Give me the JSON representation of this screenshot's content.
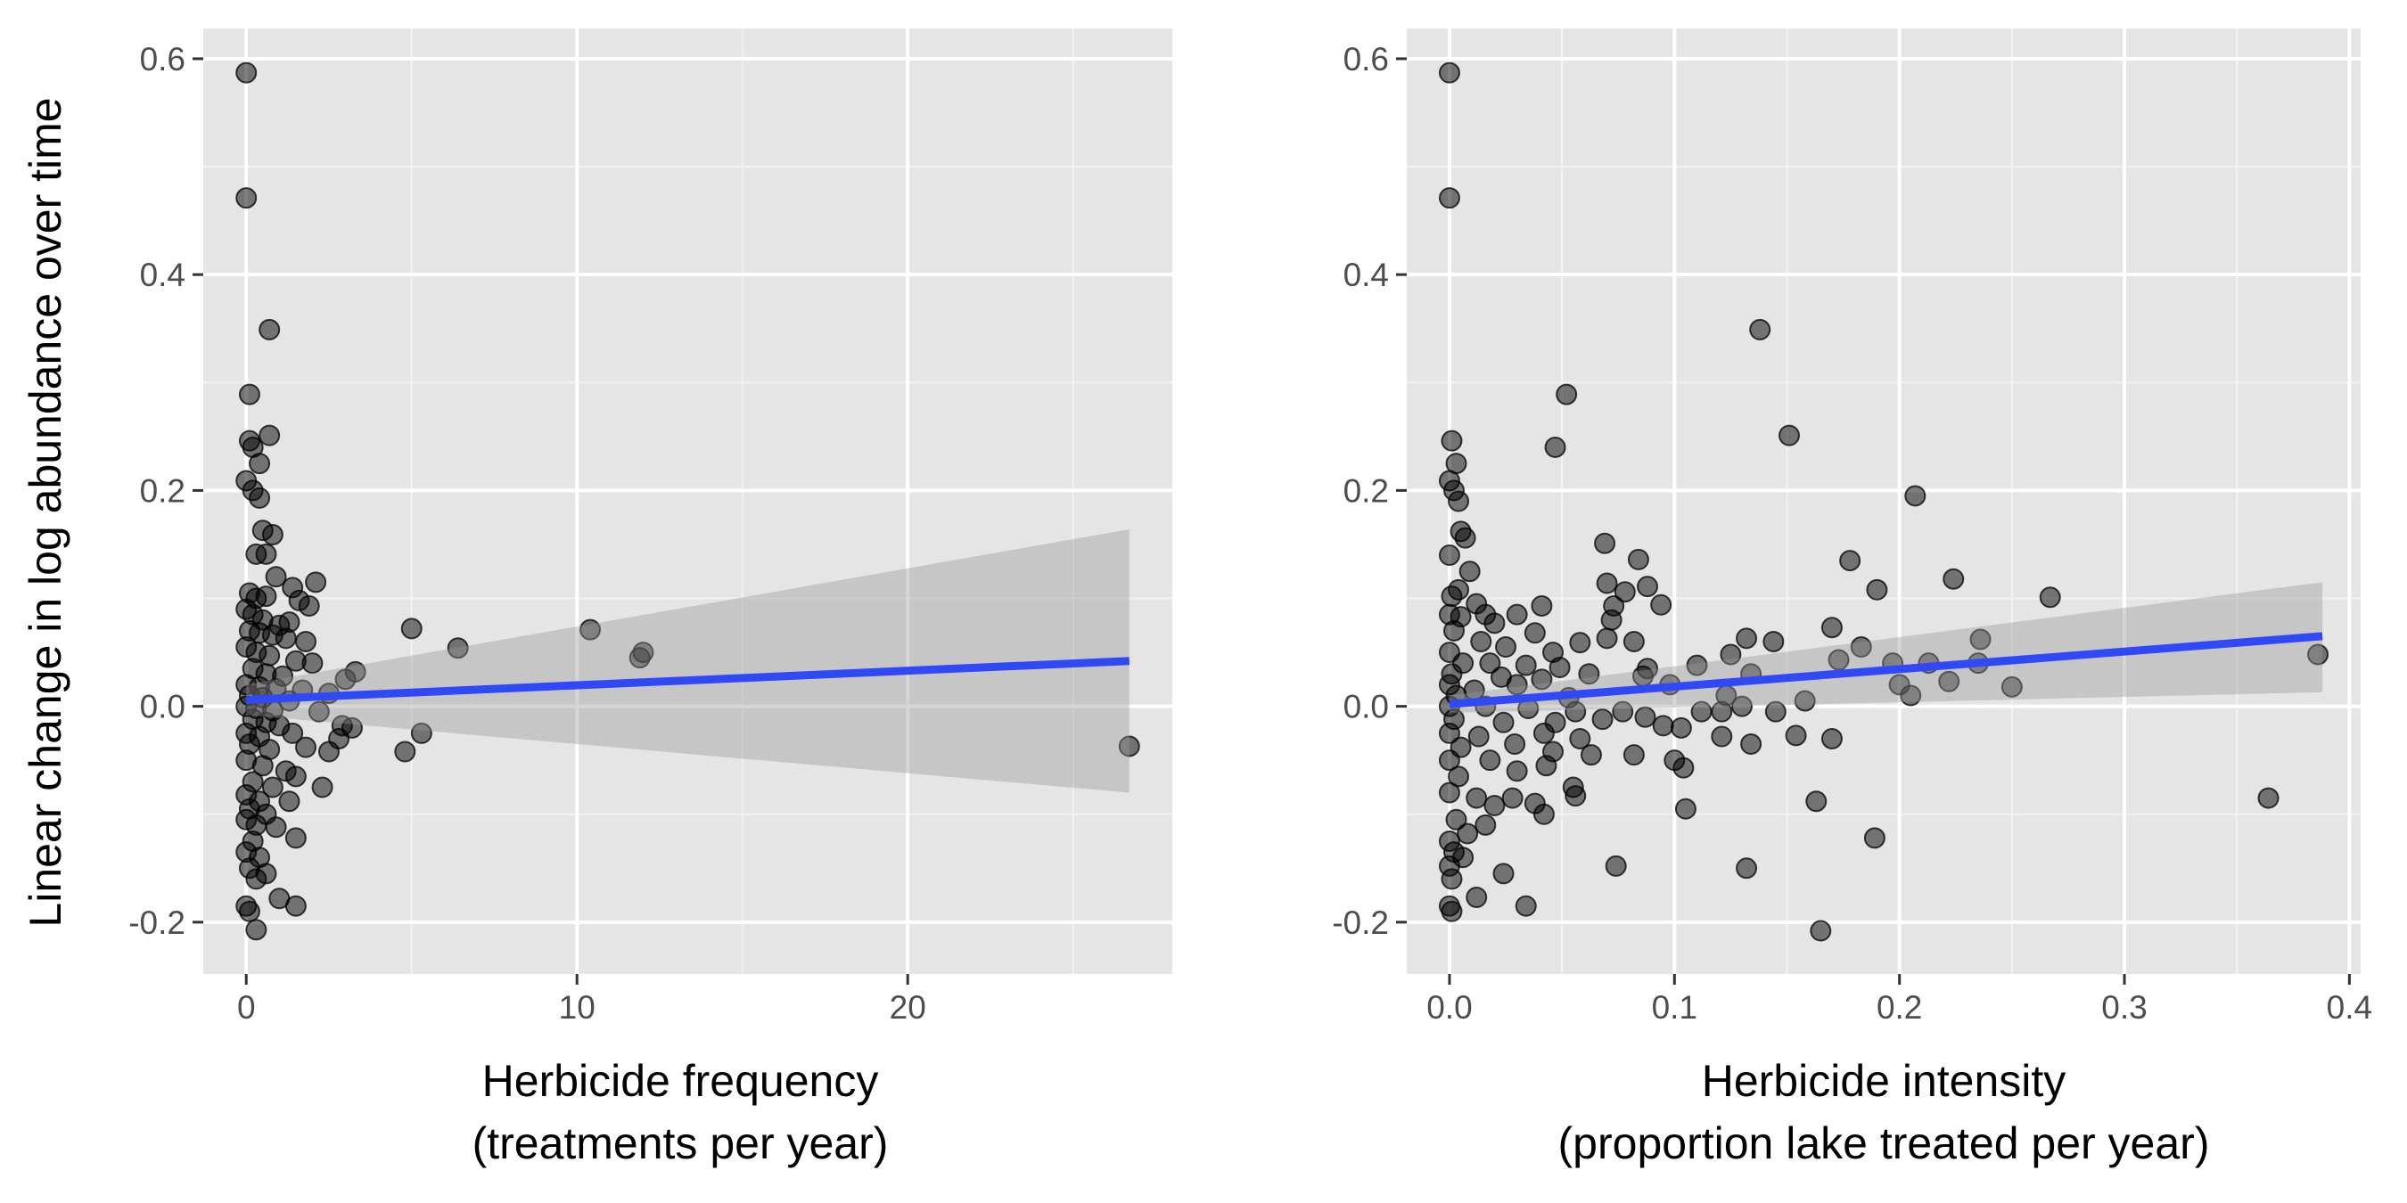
{
  "chart_data": {
    "ylabel": "Linear change in log abundance over time",
    "panels": [
      {
        "type": "scatter",
        "xlabel_line1": "Herbicide frequency",
        "xlabel_line2": "(treatments per year)",
        "xlim": [
          -1.3,
          28.0
        ],
        "ylim": [
          -0.248,
          0.628
        ],
        "xticks": [
          0,
          10,
          20
        ],
        "xtick_labels": [
          "0",
          "10",
          "20"
        ],
        "yticks": [
          -0.2,
          0.0,
          0.2,
          0.4,
          0.6
        ],
        "ytick_labels": [
          "-0.2",
          "0.0",
          "0.2",
          "0.4",
          "0.6"
        ],
        "grid": true,
        "point_color": "#000000",
        "point_opacity": 0.5,
        "fit_color": "#3049f5",
        "band_color": "#999999",
        "fit_line": {
          "x": [
            0,
            26.7
          ],
          "y": [
            0.006,
            0.042
          ]
        },
        "confidence_band": {
          "x": [
            0,
            26.7
          ],
          "lower": [
            -0.008,
            -0.08
          ],
          "upper": [
            0.02,
            0.164
          ]
        },
        "points": [
          [
            0.0,
            0.587
          ],
          [
            0.0,
            0.471
          ],
          [
            0.7,
            0.349
          ],
          [
            0.1,
            0.289
          ],
          [
            0.7,
            0.251
          ],
          [
            0.1,
            0.246
          ],
          [
            0.2,
            0.24
          ],
          [
            0.4,
            0.225
          ],
          [
            0.0,
            0.209
          ],
          [
            0.2,
            0.2
          ],
          [
            0.4,
            0.193
          ],
          [
            0.5,
            0.163
          ],
          [
            0.8,
            0.159
          ],
          [
            0.3,
            0.141
          ],
          [
            0.6,
            0.141
          ],
          [
            0.9,
            0.12
          ],
          [
            2.1,
            0.115
          ],
          [
            0.1,
            0.105
          ],
          [
            0.3,
            0.1
          ],
          [
            0.6,
            0.102
          ],
          [
            1.4,
            0.11
          ],
          [
            1.6,
            0.098
          ],
          [
            1.9,
            0.093
          ],
          [
            0.0,
            0.09
          ],
          [
            0.2,
            0.085
          ],
          [
            0.5,
            0.08
          ],
          [
            1.0,
            0.075
          ],
          [
            1.3,
            0.078
          ],
          [
            0.1,
            0.07
          ],
          [
            0.4,
            0.068
          ],
          [
            0.8,
            0.066
          ],
          [
            1.2,
            0.063
          ],
          [
            1.8,
            0.06
          ],
          [
            5.0,
            0.072
          ],
          [
            6.4,
            0.054
          ],
          [
            10.4,
            0.071
          ],
          [
            11.9,
            0.045
          ],
          [
            12.0,
            0.05
          ],
          [
            0.0,
            0.055
          ],
          [
            0.3,
            0.05
          ],
          [
            0.7,
            0.047
          ],
          [
            1.5,
            0.042
          ],
          [
            2.0,
            0.04
          ],
          [
            0.2,
            0.035
          ],
          [
            0.6,
            0.03
          ],
          [
            1.1,
            0.028
          ],
          [
            3.3,
            0.032
          ],
          [
            0.0,
            0.02
          ],
          [
            0.4,
            0.018
          ],
          [
            0.9,
            0.016
          ],
          [
            1.7,
            0.015
          ],
          [
            3.0,
            0.025
          ],
          [
            0.1,
            0.01
          ],
          [
            0.5,
            0.008
          ],
          [
            1.3,
            0.005
          ],
          [
            2.5,
            0.012
          ],
          [
            0.0,
            0.0
          ],
          [
            0.3,
            -0.002
          ],
          [
            0.8,
            -0.004
          ],
          [
            2.2,
            -0.005
          ],
          [
            0.2,
            -0.012
          ],
          [
            0.6,
            -0.015
          ],
          [
            1.0,
            -0.018
          ],
          [
            2.9,
            -0.018
          ],
          [
            3.2,
            -0.02
          ],
          [
            0.0,
            -0.025
          ],
          [
            0.4,
            -0.028
          ],
          [
            1.4,
            -0.025
          ],
          [
            2.8,
            -0.03
          ],
          [
            5.3,
            -0.025
          ],
          [
            0.1,
            -0.035
          ],
          [
            0.7,
            -0.04
          ],
          [
            1.8,
            -0.038
          ],
          [
            2.5,
            -0.042
          ],
          [
            4.8,
            -0.042
          ],
          [
            26.7,
            -0.037
          ],
          [
            0.0,
            -0.05
          ],
          [
            0.5,
            -0.055
          ],
          [
            1.2,
            -0.06
          ],
          [
            1.5,
            -0.065
          ],
          [
            0.2,
            -0.07
          ],
          [
            0.8,
            -0.075
          ],
          [
            2.3,
            -0.075
          ],
          [
            0.0,
            -0.082
          ],
          [
            0.4,
            -0.088
          ],
          [
            1.3,
            -0.088
          ],
          [
            0.1,
            -0.095
          ],
          [
            0.6,
            -0.1
          ],
          [
            0.0,
            -0.105
          ],
          [
            0.3,
            -0.11
          ],
          [
            0.9,
            -0.112
          ],
          [
            0.2,
            -0.125
          ],
          [
            1.5,
            -0.122
          ],
          [
            0.0,
            -0.135
          ],
          [
            0.4,
            -0.14
          ],
          [
            0.1,
            -0.15
          ],
          [
            0.6,
            -0.155
          ],
          [
            0.3,
            -0.16
          ],
          [
            1.0,
            -0.178
          ],
          [
            1.5,
            -0.185
          ],
          [
            0.0,
            -0.185
          ],
          [
            0.1,
            -0.19
          ],
          [
            0.3,
            -0.207
          ]
        ]
      },
      {
        "type": "scatter",
        "xlabel_line1": "Herbicide intensity",
        "xlabel_line2": "(proportion lake treated per year)",
        "xlim": [
          -0.019,
          0.405
        ],
        "ylim": [
          -0.248,
          0.628
        ],
        "xticks": [
          0.0,
          0.1,
          0.2,
          0.3,
          0.4
        ],
        "xtick_labels": [
          "0.0",
          "0.1",
          "0.2",
          "0.3",
          "0.4"
        ],
        "yticks": [
          -0.2,
          0.0,
          0.2,
          0.4,
          0.6
        ],
        "ytick_labels": [
          "-0.2",
          "0.0",
          "0.2",
          "0.4",
          "0.6"
        ],
        "grid": true,
        "point_color": "#000000",
        "point_opacity": 0.5,
        "fit_color": "#3049f5",
        "band_color": "#999999",
        "fit_line": {
          "x": [
            0.0,
            0.388
          ],
          "y": [
            0.002,
            0.065
          ]
        },
        "confidence_band": {
          "x": [
            0.0,
            0.388
          ],
          "lower": [
            -0.006,
            0.013
          ],
          "upper": [
            0.01,
            0.115
          ]
        },
        "points": [
          [
            0.0,
            0.587
          ],
          [
            0.0,
            0.471
          ],
          [
            0.138,
            0.349
          ],
          [
            0.052,
            0.289
          ],
          [
            0.151,
            0.251
          ],
          [
            0.001,
            0.246
          ],
          [
            0.047,
            0.24
          ],
          [
            0.003,
            0.225
          ],
          [
            0.0,
            0.209
          ],
          [
            0.002,
            0.2
          ],
          [
            0.004,
            0.19
          ],
          [
            0.207,
            0.195
          ],
          [
            0.005,
            0.162
          ],
          [
            0.007,
            0.156
          ],
          [
            0.069,
            0.151
          ],
          [
            0.0,
            0.14
          ],
          [
            0.084,
            0.136
          ],
          [
            0.178,
            0.135
          ],
          [
            0.009,
            0.125
          ],
          [
            0.224,
            0.118
          ],
          [
            0.07,
            0.114
          ],
          [
            0.088,
            0.111
          ],
          [
            0.19,
            0.108
          ],
          [
            0.004,
            0.108
          ],
          [
            0.001,
            0.102
          ],
          [
            0.267,
            0.101
          ],
          [
            0.078,
            0.106
          ],
          [
            0.012,
            0.095
          ],
          [
            0.041,
            0.093
          ],
          [
            0.094,
            0.094
          ],
          [
            0.073,
            0.093
          ],
          [
            0.0,
            0.085
          ],
          [
            0.005,
            0.083
          ],
          [
            0.016,
            0.085
          ],
          [
            0.03,
            0.085
          ],
          [
            0.072,
            0.08
          ],
          [
            0.02,
            0.077
          ],
          [
            0.002,
            0.07
          ],
          [
            0.038,
            0.068
          ],
          [
            0.058,
            0.059
          ],
          [
            0.07,
            0.063
          ],
          [
            0.082,
            0.06
          ],
          [
            0.17,
            0.073
          ],
          [
            0.236,
            0.062
          ],
          [
            0.132,
            0.063
          ],
          [
            0.144,
            0.06
          ],
          [
            0.014,
            0.06
          ],
          [
            0.025,
            0.055
          ],
          [
            0.046,
            0.05
          ],
          [
            0.0,
            0.05
          ],
          [
            0.125,
            0.048
          ],
          [
            0.183,
            0.055
          ],
          [
            0.173,
            0.043
          ],
          [
            0.235,
            0.04
          ],
          [
            0.386,
            0.048
          ],
          [
            0.006,
            0.04
          ],
          [
            0.018,
            0.04
          ],
          [
            0.034,
            0.038
          ],
          [
            0.049,
            0.036
          ],
          [
            0.088,
            0.035
          ],
          [
            0.11,
            0.038
          ],
          [
            0.197,
            0.04
          ],
          [
            0.213,
            0.04
          ],
          [
            0.001,
            0.03
          ],
          [
            0.023,
            0.027
          ],
          [
            0.041,
            0.025
          ],
          [
            0.062,
            0.03
          ],
          [
            0.086,
            0.028
          ],
          [
            0.134,
            0.03
          ],
          [
            0.0,
            0.02
          ],
          [
            0.011,
            0.015
          ],
          [
            0.03,
            0.02
          ],
          [
            0.098,
            0.02
          ],
          [
            0.2,
            0.02
          ],
          [
            0.222,
            0.023
          ],
          [
            0.25,
            0.018
          ],
          [
            0.003,
            0.01
          ],
          [
            0.053,
            0.008
          ],
          [
            0.123,
            0.01
          ],
          [
            0.205,
            0.01
          ],
          [
            0.0,
            0.0
          ],
          [
            0.016,
            0.0
          ],
          [
            0.035,
            -0.002
          ],
          [
            0.056,
            -0.005
          ],
          [
            0.077,
            -0.005
          ],
          [
            0.112,
            -0.005
          ],
          [
            0.121,
            -0.005
          ],
          [
            0.13,
            0.0
          ],
          [
            0.145,
            -0.005
          ],
          [
            0.158,
            0.005
          ],
          [
            0.002,
            -0.012
          ],
          [
            0.024,
            -0.015
          ],
          [
            0.047,
            -0.015
          ],
          [
            0.068,
            -0.012
          ],
          [
            0.087,
            -0.01
          ],
          [
            0.095,
            -0.018
          ],
          [
            0.0,
            -0.025
          ],
          [
            0.013,
            -0.028
          ],
          [
            0.042,
            -0.025
          ],
          [
            0.058,
            -0.03
          ],
          [
            0.103,
            -0.02
          ],
          [
            0.121,
            -0.028
          ],
          [
            0.154,
            -0.027
          ],
          [
            0.17,
            -0.03
          ],
          [
            0.005,
            -0.038
          ],
          [
            0.029,
            -0.035
          ],
          [
            0.046,
            -0.042
          ],
          [
            0.063,
            -0.045
          ],
          [
            0.082,
            -0.045
          ],
          [
            0.134,
            -0.035
          ],
          [
            0.0,
            -0.05
          ],
          [
            0.018,
            -0.05
          ],
          [
            0.043,
            -0.055
          ],
          [
            0.1,
            -0.05
          ],
          [
            0.104,
            -0.057
          ],
          [
            0.004,
            -0.065
          ],
          [
            0.03,
            -0.06
          ],
          [
            0.055,
            -0.075
          ],
          [
            0.028,
            -0.085
          ],
          [
            0.038,
            -0.09
          ],
          [
            0.056,
            -0.083
          ],
          [
            0.0,
            -0.08
          ],
          [
            0.012,
            -0.085
          ],
          [
            0.02,
            -0.092
          ],
          [
            0.105,
            -0.095
          ],
          [
            0.163,
            -0.088
          ],
          [
            0.364,
            -0.085
          ],
          [
            0.042,
            -0.1
          ],
          [
            0.003,
            -0.105
          ],
          [
            0.016,
            -0.11
          ],
          [
            0.008,
            -0.118
          ],
          [
            0.0,
            -0.125
          ],
          [
            0.189,
            -0.122
          ],
          [
            0.002,
            -0.135
          ],
          [
            0.006,
            -0.14
          ],
          [
            0.0,
            -0.148
          ],
          [
            0.074,
            -0.148
          ],
          [
            0.132,
            -0.15
          ],
          [
            0.024,
            -0.155
          ],
          [
            0.001,
            -0.16
          ],
          [
            0.012,
            -0.177
          ],
          [
            0.034,
            -0.185
          ],
          [
            0.0,
            -0.185
          ],
          [
            0.001,
            -0.19
          ],
          [
            0.165,
            -0.208
          ]
        ]
      }
    ]
  }
}
